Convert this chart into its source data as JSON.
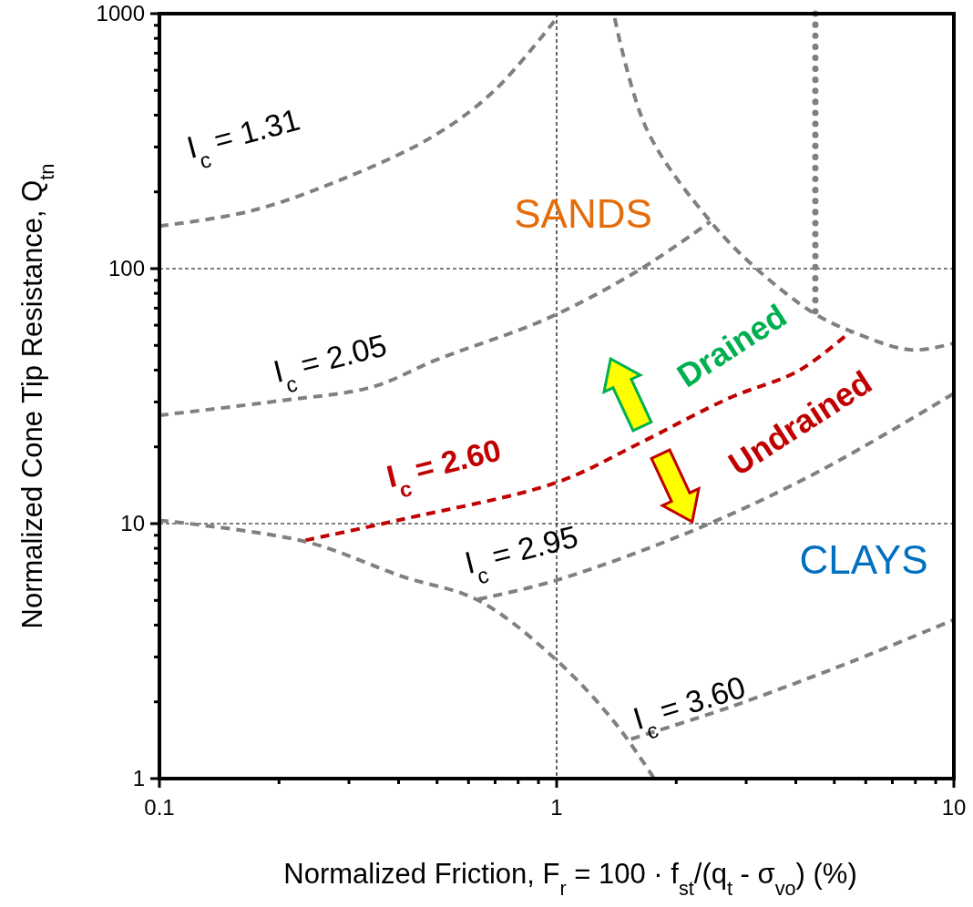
{
  "chart_data": {
    "type": "line",
    "xlabel": "Normalized Friction, F$_{r}$ = 100 · f$_{st}$/(q$_{t}$ - σ$_{vo}$)  (%)",
    "ylabel": "Normalized Cone Tip Resistance, Q$_{tn}$",
    "log": "xy",
    "xlim": [
      0.1,
      10
    ],
    "ylim": [
      1,
      1000
    ],
    "xticks": [
      0.1,
      {
        "value": 0.2,
        "label": null
      },
      {
        "value": 0.3,
        "label": null
      },
      {
        "value": 0.4,
        "label": null
      },
      {
        "value": 0.5,
        "label": null
      },
      {
        "value": 0.6,
        "label": null
      },
      {
        "value": 0.7,
        "label": null
      },
      {
        "value": 0.8,
        "label": null
      },
      {
        "value": 0.9,
        "label": null
      },
      1,
      {
        "value": 2,
        "label": null
      },
      {
        "value": 3,
        "label": null
      },
      {
        "value": 4,
        "label": null
      },
      {
        "value": 5,
        "label": null
      },
      {
        "value": 6,
        "label": null
      },
      {
        "value": 7,
        "label": null
      },
      {
        "value": 8,
        "label": null
      },
      {
        "value": 9,
        "label": null
      },
      10
    ],
    "yticks": [
      1,
      {
        "value": 2,
        "label": null
      },
      {
        "value": 3,
        "label": null
      },
      {
        "value": 4,
        "label": null
      },
      {
        "value": 5,
        "label": null
      },
      {
        "value": 6,
        "label": null
      },
      {
        "value": 7,
        "label": null
      },
      {
        "value": 8,
        "label": null
      },
      {
        "value": 9,
        "label": null
      },
      10,
      {
        "value": 20,
        "label": null
      },
      {
        "value": 30,
        "label": null
      },
      {
        "value": 40,
        "label": null
      },
      {
        "value": 50,
        "label": null
      },
      {
        "value": 60,
        "label": null
      },
      {
        "value": 70,
        "label": null
      },
      {
        "value": 80,
        "label": null
      },
      {
        "value": 90,
        "label": null
      },
      100,
      {
        "value": 200,
        "label": null
      },
      {
        "value": 300,
        "label": null
      },
      {
        "value": 400,
        "label": null
      },
      {
        "value": 500,
        "label": null
      },
      {
        "value": 600,
        "label": null
      },
      {
        "value": 700,
        "label": null
      },
      {
        "value": 800,
        "label": null
      },
      {
        "value": 900,
        "label": null
      },
      1000
    ],
    "grid": true,
    "marker": "none",
    "series": [
      {
        "name": "I$_{c}$ = 1.31",
        "color": "#808080",
        "line_style": "dashed",
        "x": [
          0.1,
          0.169,
          0.288,
          0.488,
          0.695,
          1
        ],
        "values": [
          147,
          168,
          224,
          330,
          497,
          960
        ]
      },
      {
        "name": "I$_{c}$ = 2.05",
        "color": "#808080",
        "line_style": "dashed",
        "x": [
          0.1,
          0.2,
          0.342,
          0.5,
          0.944,
          1.6,
          2.44
        ],
        "values": [
          26.6,
          30.3,
          34.3,
          44,
          63.6,
          98,
          153
        ]
      },
      {
        "name": "I$_{c}$ = 2.60",
        "color": "#c00000",
        "line_style": "dashed",
        "x": [
          0.233,
          0.409,
          1,
          1.6,
          2.71,
          4.07,
          5.48
        ],
        "values": [
          8.6,
          10.4,
          14.5,
          20.5,
          31,
          39.8,
          56.5
        ]
      },
      {
        "name": "I$_{c}$ = 2.95",
        "color": "#808080",
        "line_style": "dashed",
        "x": [
          0.635,
          1,
          2.28,
          4.6,
          10
        ],
        "values": [
          5.05,
          6,
          9.6,
          16.1,
          32.4
        ]
      },
      {
        "name": "I$_{c}$ = 3.60",
        "color": "#808080",
        "line_style": "dashed",
        "x": [
          1.54,
          2.71,
          5.48,
          10
        ],
        "values": [
          1.43,
          1.9,
          2.86,
          4.2
        ]
      },
      {
        "color": "#808080",
        "line_style": "dashed",
        "x": [
          1.4,
          1.69,
          2.44,
          3.23,
          4.43,
          5.48,
          7.8,
          10
        ],
        "values": [
          960,
          349,
          153,
          98,
          67,
          57,
          48,
          51
        ]
      },
      {
        "color": "#808080",
        "line_style": "dashed",
        "x": [
          0.1,
          0.233,
          0.409,
          0.635,
          1,
          1.4,
          1.76
        ],
        "values": [
          10.3,
          8.5,
          6.2,
          5,
          2.91,
          1.66,
          1
        ]
      },
      {
        "color": "#808080",
        "line_style": "dotted",
        "x": [
          4.48,
          4.48
        ],
        "values": [
          1000,
          68
        ]
      }
    ],
    "annotations": [
      "SANDS",
      "CLAYS",
      "Drained",
      "Undrained"
    ]
  }
}
